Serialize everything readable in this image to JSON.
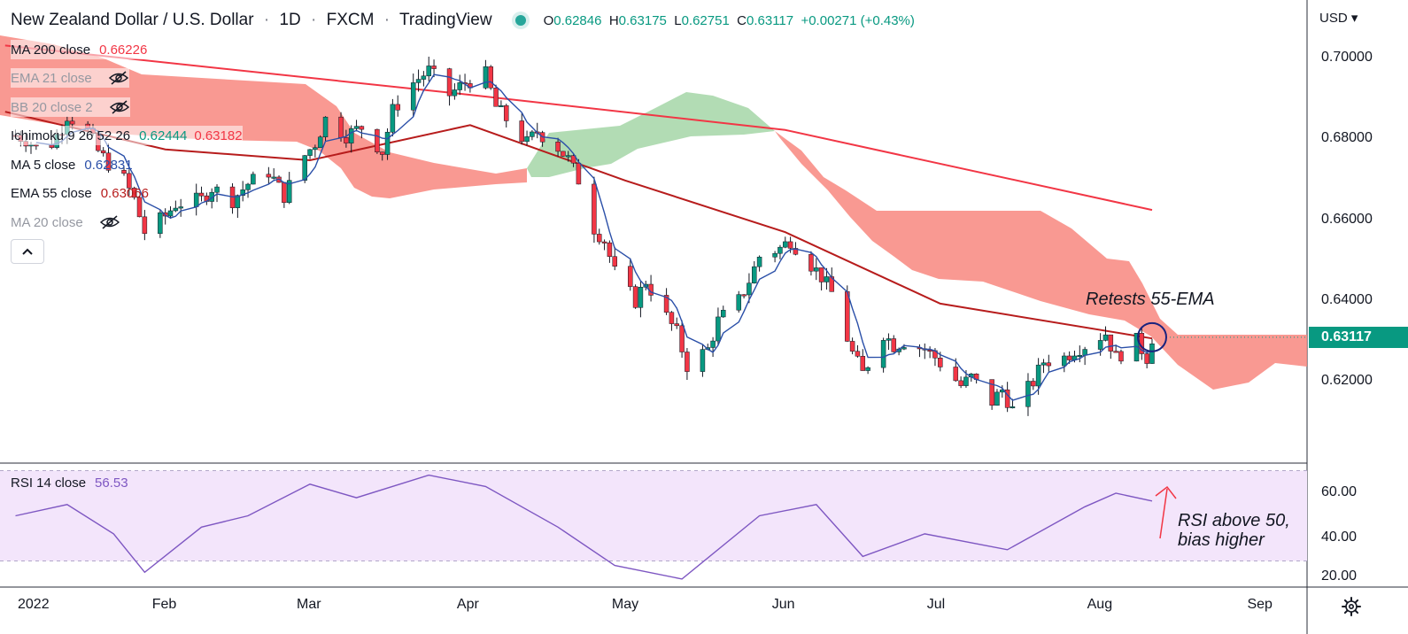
{
  "header": {
    "symbol": "New Zealand Dollar / U.S. Dollar",
    "interval": "1D",
    "source": "FXCM",
    "platform": "TradingView",
    "sep": "·",
    "o_label": "O",
    "o_value": "0.62846",
    "h_label": "H",
    "h_value": "0.63175",
    "l_label": "L",
    "l_value": "0.62751",
    "c_label": "C",
    "c_value": "0.63117",
    "change": "+0.00271 (+0.43%)"
  },
  "legends": [
    {
      "name": "MA 200 close",
      "value": "0.66226",
      "color": "#f23645",
      "hidden": false
    },
    {
      "name": "EMA 21 close",
      "value": "",
      "color": "",
      "hidden": true
    },
    {
      "name": "BB 20 close 2",
      "value": "",
      "color": "",
      "hidden": true
    },
    {
      "name": "Ichimoku 9 26 52 26",
      "value": "0.62444",
      "value2": "0.63182",
      "color": "#089981",
      "color2": "#f23645",
      "hidden": false
    },
    {
      "name": "MA 5 close",
      "value": "0.62831",
      "color": "#2a4fa8",
      "hidden": false
    },
    {
      "name": "EMA 55 close",
      "value": "0.63066",
      "color": "#b71c1c",
      "hidden": false
    },
    {
      "name": "MA 20 close",
      "value": "",
      "color": "",
      "hidden": true
    }
  ],
  "price_axis": {
    "currency": "USD",
    "ticks": [
      "0.70000",
      "0.68000",
      "0.66000",
      "0.64000",
      "0.62000"
    ],
    "last_price": "0.63117"
  },
  "time_axis": {
    "ticks": [
      "2022",
      "Feb",
      "Mar",
      "Apr",
      "May",
      "Jun",
      "Jul",
      "Aug",
      "Sep"
    ]
  },
  "rsi": {
    "name": "RSI 14 close",
    "value": "56.53",
    "ticks": [
      "60.00",
      "40.00",
      "20.00"
    ]
  },
  "annotations": {
    "ema_note": "Retests 55-EMA",
    "rsi_note_line1": "RSI above 50,",
    "rsi_note_line2": "bias higher"
  },
  "colors": {
    "up": "#089981",
    "down": "#f23645",
    "ma200": "#f23645",
    "ema55": "#b71c1c",
    "ma5": "#2a4fa8",
    "cloud_bear": "#f8877f",
    "cloud_bull": "#a5d6a7",
    "rsi_line": "#7e57c2",
    "rsi_band": "#f3e5fb",
    "circle": "#1a237e"
  },
  "chart_data": {
    "type": "candlestick",
    "title": "New Zealand Dollar / U.S. Dollar · 1D · FXCM",
    "y_range": [
      0.6,
      0.7
    ],
    "y_ticks": [
      0.62,
      0.64,
      0.66,
      0.68,
      0.7
    ],
    "x_range": [
      "2021-12-31",
      "2022-09-10"
    ],
    "x_ticks": [
      "2022-01-01",
      "2022-02-01",
      "2022-03-01",
      "2022-04-01",
      "2022-05-01",
      "2022-06-01",
      "2022-07-01",
      "2022-08-01",
      "2022-09-01"
    ],
    "close_path": [
      [
        "2022-01-03",
        0.681
      ],
      [
        "2022-01-05",
        0.68
      ],
      [
        "2022-01-07",
        0.678
      ],
      [
        "2022-01-10",
        0.679
      ],
      [
        "2022-01-12",
        0.683
      ],
      [
        "2022-01-13",
        0.686
      ],
      [
        "2022-01-17",
        0.682
      ],
      [
        "2022-01-19",
        0.677
      ],
      [
        "2022-01-21",
        0.674
      ],
      [
        "2022-01-24",
        0.67
      ],
      [
        "2022-01-26",
        0.665
      ],
      [
        "2022-01-28",
        0.657
      ],
      [
        "2022-02-01",
        0.661
      ],
      [
        "2022-02-03",
        0.664
      ],
      [
        "2022-02-08",
        0.665
      ],
      [
        "2022-02-10",
        0.668
      ],
      [
        "2022-02-14",
        0.665
      ],
      [
        "2022-02-17",
        0.669
      ],
      [
        "2022-02-21",
        0.672
      ],
      [
        "2022-02-24",
        0.666
      ],
      [
        "2022-02-28",
        0.676
      ],
      [
        "2022-03-02",
        0.679
      ],
      [
        "2022-03-04",
        0.685
      ],
      [
        "2022-03-08",
        0.681
      ],
      [
        "2022-03-11",
        0.683
      ],
      [
        "2022-03-15",
        0.677
      ],
      [
        "2022-03-17",
        0.687
      ],
      [
        "2022-03-21",
        0.694
      ],
      [
        "2022-03-24",
        0.697
      ],
      [
        "2022-03-28",
        0.691
      ],
      [
        "2022-03-31",
        0.694
      ],
      [
        "2022-04-04",
        0.696
      ],
      [
        "2022-04-06",
        0.688
      ],
      [
        "2022-04-08",
        0.685
      ],
      [
        "2022-04-12",
        0.679
      ],
      [
        "2022-04-14",
        0.682
      ],
      [
        "2022-04-18",
        0.678
      ],
      [
        "2022-04-20",
        0.675
      ],
      [
        "2022-04-22",
        0.67
      ],
      [
        "2022-04-25",
        0.658
      ],
      [
        "2022-04-27",
        0.655
      ],
      [
        "2022-04-29",
        0.647
      ],
      [
        "2022-05-03",
        0.64
      ],
      [
        "2022-05-05",
        0.645
      ],
      [
        "2022-05-09",
        0.636
      ],
      [
        "2022-05-11",
        0.632
      ],
      [
        "2022-05-13",
        0.624
      ],
      [
        "2022-05-17",
        0.628
      ],
      [
        "2022-05-19",
        0.635
      ],
      [
        "2022-05-23",
        0.64
      ],
      [
        "2022-05-25",
        0.645
      ],
      [
        "2022-05-27",
        0.651
      ],
      [
        "2022-05-31",
        0.653
      ],
      [
        "2022-06-02",
        0.655
      ],
      [
        "2022-06-06",
        0.649
      ],
      [
        "2022-06-08",
        0.646
      ],
      [
        "2022-06-10",
        0.642
      ],
      [
        "2022-06-14",
        0.627
      ],
      [
        "2022-06-16",
        0.622
      ],
      [
        "2022-06-20",
        0.632
      ],
      [
        "2022-06-22",
        0.629
      ],
      [
        "2022-06-24",
        0.63
      ],
      [
        "2022-06-28",
        0.628
      ],
      [
        "2022-06-30",
        0.626
      ],
      [
        "2022-07-05",
        0.619
      ],
      [
        "2022-07-07",
        0.621
      ],
      [
        "2022-07-11",
        0.615
      ],
      [
        "2022-07-13",
        0.618
      ],
      [
        "2022-07-15",
        0.613
      ],
      [
        "2022-07-19",
        0.62
      ],
      [
        "2022-07-21",
        0.625
      ],
      [
        "2022-07-25",
        0.626
      ],
      [
        "2022-07-27",
        0.628
      ],
      [
        "2022-07-29",
        0.629
      ],
      [
        "2022-08-02",
        0.632
      ],
      [
        "2022-08-04",
        0.626
      ],
      [
        "2022-08-08",
        0.63
      ],
      [
        "2022-08-10",
        0.626
      ],
      [
        "2022-08-11",
        0.631
      ]
    ],
    "ma200": [
      [
        "2022-01-01",
        0.7032
      ],
      [
        "2022-04-01",
        0.691
      ],
      [
        "2022-06-01",
        0.6823
      ],
      [
        "2022-08-11",
        0.6625
      ]
    ],
    "ema55": [
      [
        "2022-01-01",
        0.6868
      ],
      [
        "2022-02-01",
        0.6775
      ],
      [
        "2022-03-01",
        0.6748
      ],
      [
        "2022-04-01",
        0.6835
      ],
      [
        "2022-05-01",
        0.6698
      ],
      [
        "2022-06-01",
        0.657
      ],
      [
        "2022-07-01",
        0.6393
      ],
      [
        "2022-08-11",
        0.6307
      ]
    ],
    "rsi_values": [
      [
        "2022-01-03",
        50
      ],
      [
        "2022-01-13",
        55
      ],
      [
        "2022-01-22",
        42
      ],
      [
        "2022-01-28",
        25
      ],
      [
        "2022-02-08",
        45
      ],
      [
        "2022-02-17",
        50
      ],
      [
        "2022-03-01",
        64
      ],
      [
        "2022-03-10",
        58
      ],
      [
        "2022-03-24",
        68
      ],
      [
        "2022-04-04",
        63
      ],
      [
        "2022-04-18",
        45
      ],
      [
        "2022-04-29",
        28
      ],
      [
        "2022-05-12",
        22
      ],
      [
        "2022-05-27",
        50
      ],
      [
        "2022-06-07",
        55
      ],
      [
        "2022-06-16",
        32
      ],
      [
        "2022-06-28",
        42
      ],
      [
        "2022-07-14",
        35
      ],
      [
        "2022-07-29",
        54
      ],
      [
        "2022-08-04",
        60
      ],
      [
        "2022-08-11",
        56.53
      ]
    ],
    "rsi_range": [
      20,
      70
    ],
    "rsi_band": [
      30,
      70
    ]
  }
}
